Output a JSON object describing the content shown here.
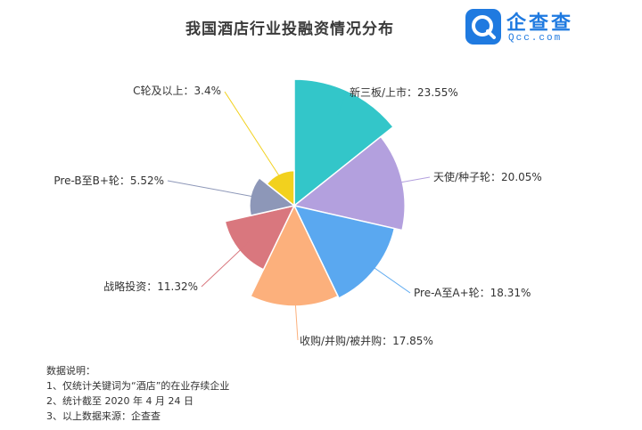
{
  "title": "我国酒店行业投融资情况分布",
  "logo": {
    "name": "企查查",
    "domain": "Qcc.com",
    "color": "#1f7ae0"
  },
  "notes": {
    "heading": "数据说明：",
    "lines": [
      "1、仅统计关键词为“酒店”的在业存续企业",
      "2、统计截至 2020 年 4 月 24 日",
      "3、以上数据来源：企查查"
    ]
  },
  "chart_data": {
    "type": "pie",
    "variant": "nightingale-rose",
    "title": "我国酒店行业投融资情况分布",
    "unit": "%",
    "slices": [
      {
        "name": "新三板/上市",
        "value": 23.55,
        "label": "新三板/上市：23.55%",
        "color": "#33c6c9"
      },
      {
        "name": "天使/种子轮",
        "value": 20.05,
        "label": "天使/种子轮：20.05%",
        "color": "#b3a0de"
      },
      {
        "name": "Pre-A至A+轮",
        "value": 18.31,
        "label": "Pre-A至A+轮：18.31%",
        "color": "#5aa8f0"
      },
      {
        "name": "收购/并购/被并购",
        "value": 17.85,
        "label": "收购/并购/被并购：17.85%",
        "color": "#fcb07c"
      },
      {
        "name": "战略投资",
        "value": 11.32,
        "label": "战略投资：11.32%",
        "color": "#d9777e"
      },
      {
        "name": "Pre-B至B+轮",
        "value": 5.52,
        "label": "Pre-B至B+轮：5.52%",
        "color": "#8d97b8"
      },
      {
        "name": "C轮及以上",
        "value": 3.4,
        "label": "C轮及以上：3.4%",
        "color": "#f2d11e"
      }
    ]
  }
}
